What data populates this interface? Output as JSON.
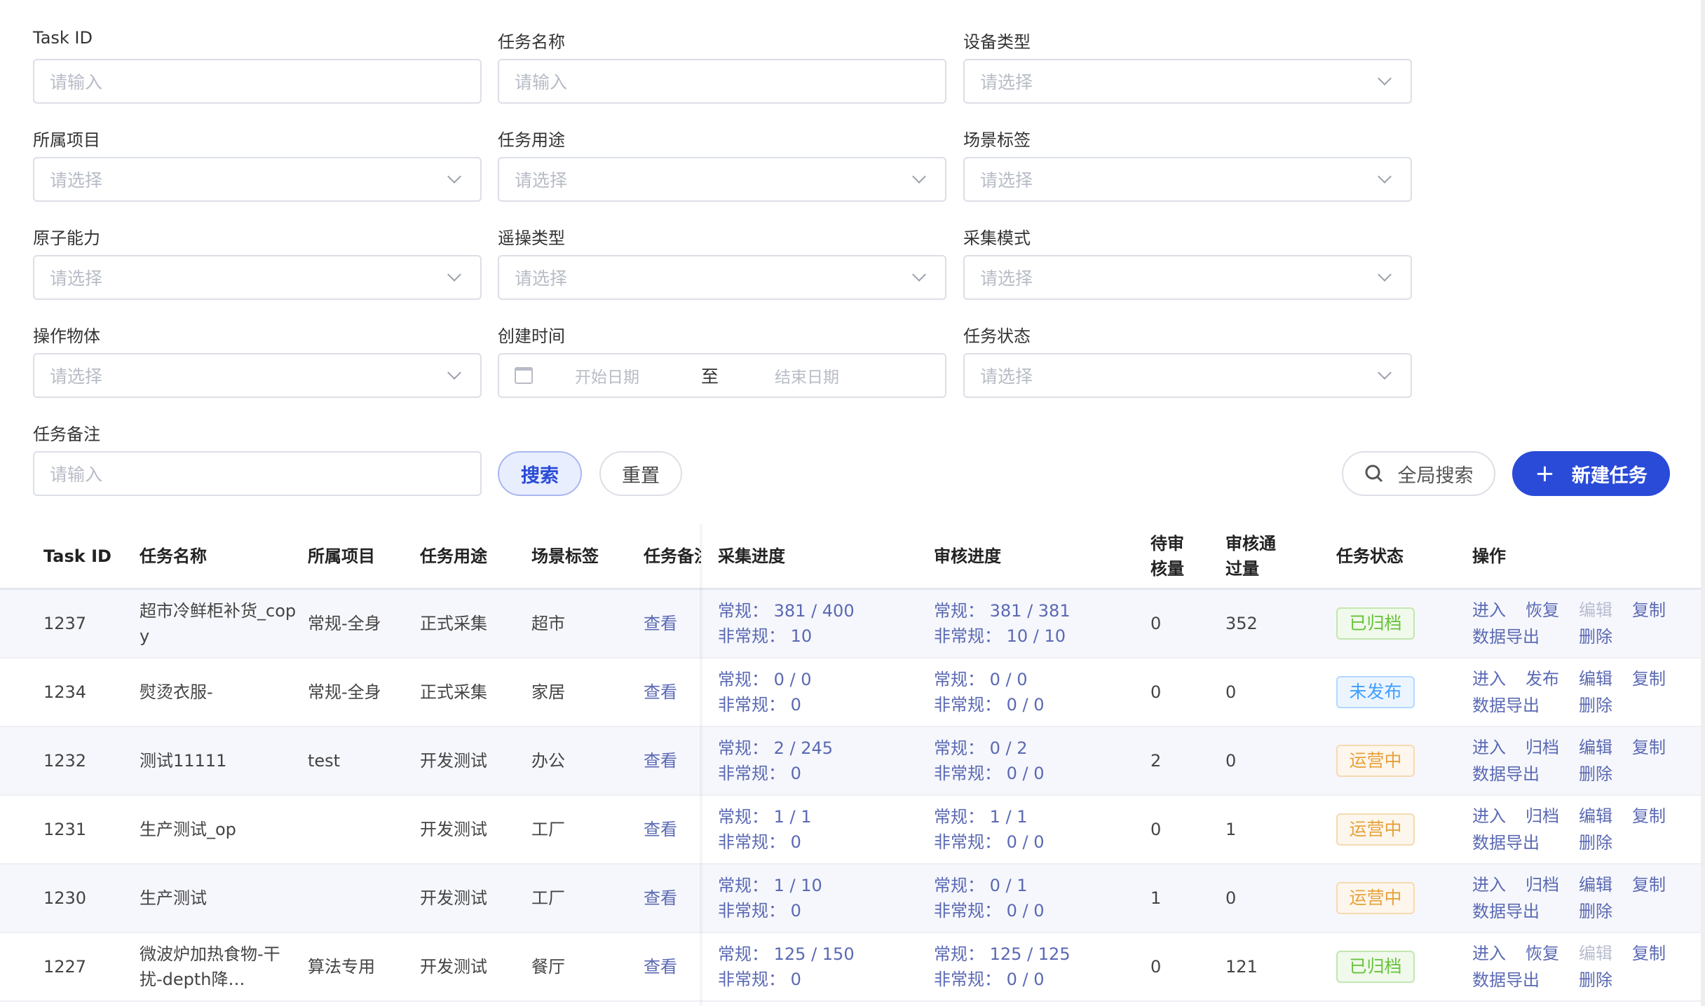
{
  "filters": [
    {
      "label": "Task ID",
      "placeholder": "请输入",
      "type": "input"
    },
    {
      "label": "任务名称",
      "placeholder": "请输入",
      "type": "input"
    },
    {
      "label": "设备类型",
      "placeholder": "请选择",
      "type": "select"
    },
    {
      "label": "所属项目",
      "placeholder": "请选择",
      "type": "select"
    },
    {
      "label": "任务用途",
      "placeholder": "请选择",
      "type": "select"
    },
    {
      "label": "场景标签",
      "placeholder": "请选择",
      "type": "select"
    },
    {
      "label": "原子能力",
      "placeholder": "请选择",
      "type": "select"
    },
    {
      "label": "遥操类型",
      "placeholder": "请选择",
      "type": "select"
    },
    {
      "label": "采集模式",
      "placeholder": "请选择",
      "type": "select"
    },
    {
      "label": "操作物体",
      "placeholder": "请选择",
      "type": "select"
    },
    {
      "label": "创建时间",
      "type": "daterange",
      "start": "开始日期",
      "sep": "至",
      "end": "结束日期"
    },
    {
      "label": "任务状态",
      "placeholder": "请选择",
      "type": "select"
    },
    {
      "label": "任务备注",
      "placeholder": "请输入",
      "type": "input"
    }
  ],
  "buttons": {
    "search": "搜索",
    "reset": "重置",
    "global_search": "全局搜索",
    "new_task": "新建任务"
  },
  "colors": {
    "primary": "#2a4bd7",
    "link": "#5a69b3"
  },
  "table": {
    "headers": [
      "Task ID",
      "任务名称",
      "所属项目",
      "任务用途",
      "场景标签",
      "任务备注",
      "采集进度",
      "审核进度",
      "待审核量",
      "审核通过量",
      "任务状态",
      "操作"
    ],
    "rows": [
      {
        "id": "1237",
        "name": "超市冷鲜柜补货_copy",
        "project": "常规-全身",
        "use": "正式采集",
        "scene": "超市",
        "remark": "查看",
        "collect": [
          "常规： 381 / 400",
          "非常规： 10"
        ],
        "review": [
          "常规： 381 / 381",
          "非常规： 10 / 10"
        ],
        "pending": "0",
        "passed": "352",
        "status": "已归档",
        "status_kind": "green",
        "ops": [
          {
            "t": "进入"
          },
          {
            "t": "恢复"
          },
          {
            "t": "编辑",
            "disabled": true
          },
          {
            "t": "复制"
          },
          {
            "t": "数据导出"
          },
          {
            "t": "删除"
          }
        ]
      },
      {
        "id": "1234",
        "name": "熨烫衣服-",
        "project": "常规-全身",
        "use": "正式采集",
        "scene": "家居",
        "remark": "查看",
        "collect": [
          "常规： 0 / 0",
          "非常规： 0"
        ],
        "review": [
          "常规： 0 / 0",
          "非常规： 0 / 0"
        ],
        "pending": "0",
        "passed": "0",
        "status": "未发布",
        "status_kind": "blue",
        "ops": [
          {
            "t": "进入"
          },
          {
            "t": "发布"
          },
          {
            "t": "编辑"
          },
          {
            "t": "复制"
          },
          {
            "t": "数据导出"
          },
          {
            "t": "删除"
          }
        ]
      },
      {
        "id": "1232",
        "name": "测试11111",
        "project": "test",
        "use": "开发测试",
        "scene": "办公",
        "remark": "查看",
        "collect": [
          "常规： 2 / 245",
          "非常规： 0"
        ],
        "review": [
          "常规： 0 / 2",
          "非常规： 0 / 0"
        ],
        "pending": "2",
        "passed": "0",
        "status": "运营中",
        "status_kind": "orange",
        "ops": [
          {
            "t": "进入"
          },
          {
            "t": "归档"
          },
          {
            "t": "编辑"
          },
          {
            "t": "复制"
          },
          {
            "t": "数据导出"
          },
          {
            "t": "删除"
          }
        ]
      },
      {
        "id": "1231",
        "name": "生产测试_op",
        "project": "",
        "use": "开发测试",
        "scene": "工厂",
        "remark": "查看",
        "collect": [
          "常规： 1 / 1",
          "非常规： 0"
        ],
        "review": [
          "常规： 1 / 1",
          "非常规： 0 / 0"
        ],
        "pending": "0",
        "passed": "1",
        "status": "运营中",
        "status_kind": "orange",
        "ops": [
          {
            "t": "进入"
          },
          {
            "t": "归档"
          },
          {
            "t": "编辑"
          },
          {
            "t": "复制"
          },
          {
            "t": "数据导出"
          },
          {
            "t": "删除"
          }
        ]
      },
      {
        "id": "1230",
        "name": "生产测试",
        "project": "",
        "use": "开发测试",
        "scene": "工厂",
        "remark": "查看",
        "collect": [
          "常规： 1 / 10",
          "非常规： 0"
        ],
        "review": [
          "常规： 0 / 1",
          "非常规： 0 / 0"
        ],
        "pending": "1",
        "passed": "0",
        "status": "运营中",
        "status_kind": "orange",
        "ops": [
          {
            "t": "进入"
          },
          {
            "t": "归档"
          },
          {
            "t": "编辑"
          },
          {
            "t": "复制"
          },
          {
            "t": "数据导出"
          },
          {
            "t": "删除"
          }
        ]
      },
      {
        "id": "1227",
        "name": "微波炉加热食物-干扰-depth降…",
        "project": "算法专用",
        "use": "开发测试",
        "scene": "餐厅",
        "remark": "查看",
        "collect": [
          "常规： 125 / 150",
          "非常规： 0"
        ],
        "review": [
          "常规： 125 / 125",
          "非常规： 0 / 0"
        ],
        "pending": "0",
        "passed": "121",
        "status": "已归档",
        "status_kind": "green",
        "ops": [
          {
            "t": "进入"
          },
          {
            "t": "恢复"
          },
          {
            "t": "编辑",
            "disabled": true
          },
          {
            "t": "复制"
          },
          {
            "t": "数据导出"
          },
          {
            "t": "删除"
          }
        ]
      }
    ]
  }
}
